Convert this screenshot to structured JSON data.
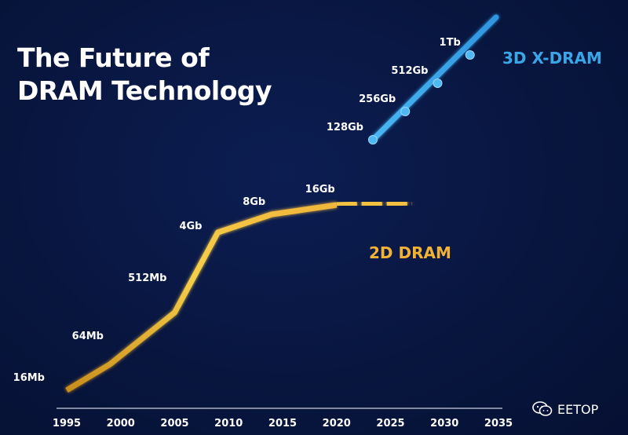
{
  "title": {
    "line1": "The Future of",
    "line2": "DRAM Technology"
  },
  "chart_data": {
    "type": "line",
    "title": "The Future of DRAM Technology",
    "xlabel": "",
    "ylabel": "",
    "xlim": [
      1993,
      2036
    ],
    "x_ticks": [
      "1995",
      "2000",
      "2005",
      "2010",
      "2015",
      "2020",
      "2025",
      "2030",
      "2035"
    ],
    "y_scale": "log2 density",
    "grid": false,
    "series": [
      {
        "name": "2D DRAM",
        "color": "#f2b233",
        "points": [
          {
            "x": 1995,
            "label": "16Mb"
          },
          {
            "x": 1999,
            "label": "64Mb"
          },
          {
            "x": 2005,
            "label": "512Mb"
          },
          {
            "x": 2009,
            "label": "4Gb"
          },
          {
            "x": 2014,
            "label": "8Gb"
          },
          {
            "x": 2020,
            "label": "16Gb"
          }
        ],
        "projection_to": 2027,
        "projection_style": "dashed"
      },
      {
        "name": "3D X-DRAM",
        "color": "#3aa6e8",
        "points": [
          {
            "x": 2023,
            "label": "128Gb"
          },
          {
            "x": 2026,
            "label": "256Gb"
          },
          {
            "x": 2029,
            "label": "512Gb"
          },
          {
            "x": 2032,
            "label": "1Tb"
          }
        ],
        "projection_to": 2035
      }
    ]
  },
  "watermark": {
    "text": "EETOP",
    "icon": "wechat-icon"
  }
}
